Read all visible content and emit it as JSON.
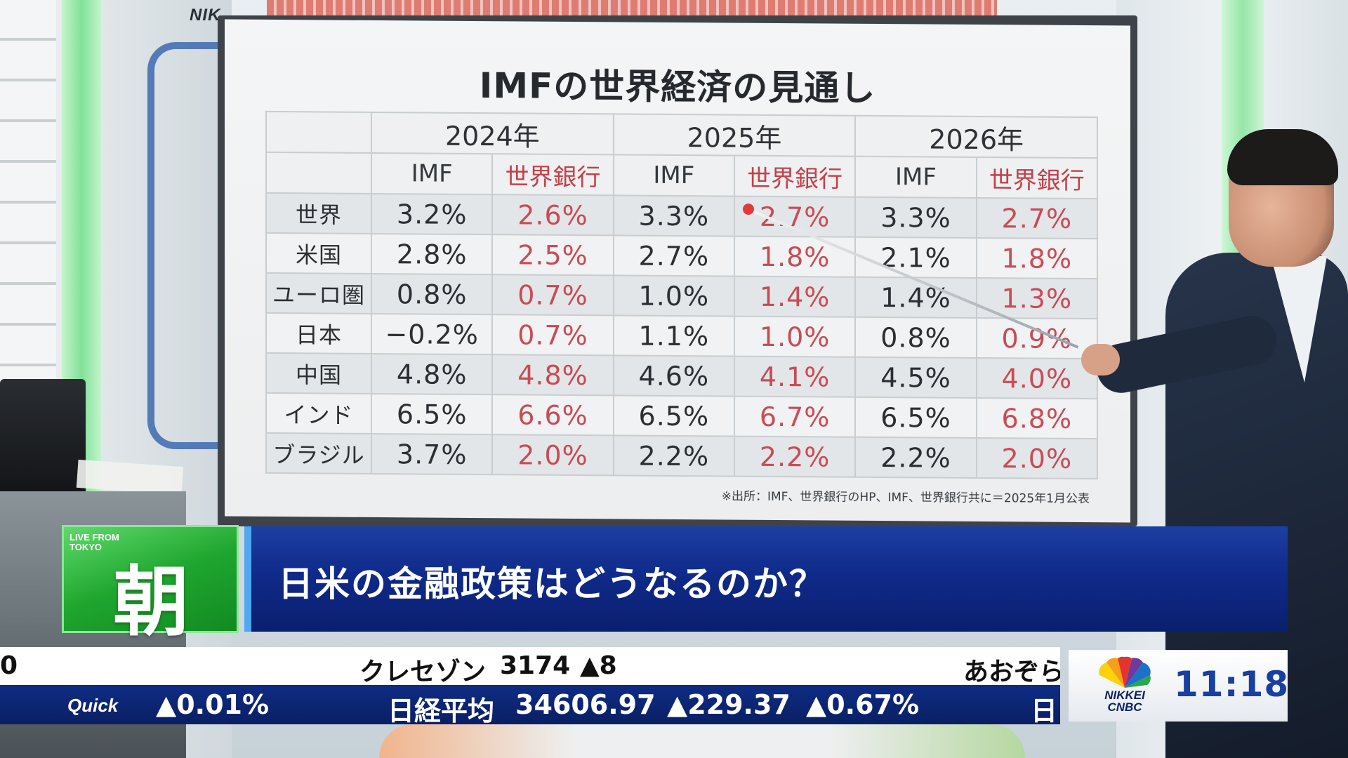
{
  "studio": {
    "top_logo": "NIK"
  },
  "board": {
    "title": "IMFの世界経済の見通し",
    "years": [
      "2024年",
      "2025年",
      "2026年"
    ],
    "sources": {
      "imf": "IMF",
      "wb": "世界銀行"
    },
    "rows": [
      {
        "country": "世界",
        "y2024_imf": "3.2%",
        "y2024_wb": "2.6%",
        "y2025_imf": "3.3%",
        "y2025_wb": "2.7%",
        "y2026_imf": "3.3%",
        "y2026_wb": "2.7%"
      },
      {
        "country": "米国",
        "y2024_imf": "2.8%",
        "y2024_wb": "2.5%",
        "y2025_imf": "2.7%",
        "y2025_wb": "1.8%",
        "y2026_imf": "2.1%",
        "y2026_wb": "1.8%"
      },
      {
        "country": "ユーロ圏",
        "y2024_imf": "0.8%",
        "y2024_wb": "0.7%",
        "y2025_imf": "1.0%",
        "y2025_wb": "1.4%",
        "y2026_imf": "1.4%",
        "y2026_wb": "1.3%"
      },
      {
        "country": "日本",
        "y2024_imf": "−0.2%",
        "y2024_wb": "0.7%",
        "y2025_imf": "1.1%",
        "y2025_wb": "1.0%",
        "y2026_imf": "0.8%",
        "y2026_wb": "0.9%"
      },
      {
        "country": "中国",
        "y2024_imf": "4.8%",
        "y2024_wb": "4.8%",
        "y2025_imf": "4.6%",
        "y2025_wb": "4.1%",
        "y2026_imf": "4.5%",
        "y2026_wb": "4.0%"
      },
      {
        "country": "インド",
        "y2024_imf": "6.5%",
        "y2024_wb": "6.6%",
        "y2025_imf": "6.5%",
        "y2025_wb": "6.7%",
        "y2026_imf": "6.5%",
        "y2026_wb": "6.8%"
      },
      {
        "country": "ブラジル",
        "y2024_imf": "3.7%",
        "y2024_wb": "2.0%",
        "y2025_imf": "2.2%",
        "y2025_wb": "2.2%",
        "y2026_imf": "2.2%",
        "y2026_wb": "2.0%"
      }
    ],
    "note": "※出所：IMF、世界銀行のHP、IMF、世界銀行共に＝2025年1月公表"
  },
  "lower_third": {
    "live_label": "LIVE FROM TOKYO",
    "program_kanji": "朝",
    "headline": "日米の金融政策はどうなるのか？"
  },
  "ticker": {
    "top_left": "0",
    "top_stock": "クレセゾン",
    "top_price": "3174",
    "top_change": "▲8",
    "top_right": "あおぞら",
    "quick_label": "Quick",
    "prev_change_pct": "▲0.01%",
    "index_name": "日経平均",
    "index_value": "34606.97",
    "index_change": "▲229.37",
    "index_change_pct": "▲0.67%",
    "next_label": "日",
    "brand_line1": "NIKKEI",
    "brand_line2": "CNBC",
    "time": "11:18"
  },
  "colors": {
    "wb_red": "#c94b55",
    "lt_blue": "#0f2a8a",
    "program_green": "#1fa62f",
    "ticker_up": "#e8323a"
  }
}
